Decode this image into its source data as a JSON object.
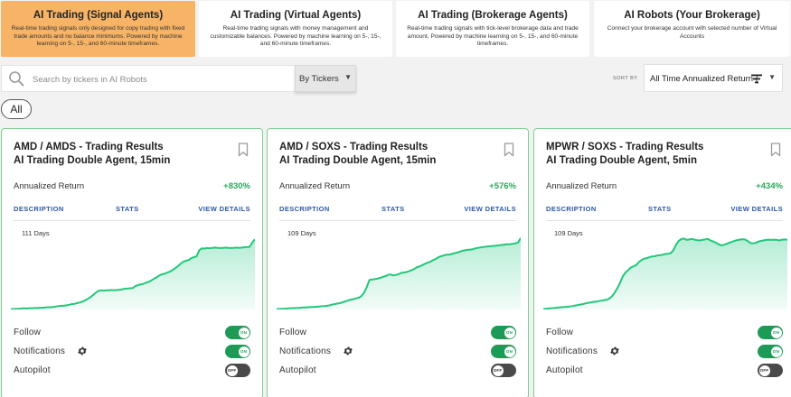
{
  "tabs": [
    {
      "title": "AI Trading (Signal Agents)",
      "desc": "Real-time trading signals only designed for copy trading with fixed trade amounts and no balance minimums. Powered by machine learning on 5-, 15-, and 60-minute timeframes.",
      "active": true
    },
    {
      "title": "AI Trading (Virtual Agents)",
      "desc": "Real-time trading signals with money management and customizable balances. Powered by machine learning on 5-, 15-, and 60-minute timeframes.",
      "active": false
    },
    {
      "title": "AI Trading (Brokerage Agents)",
      "desc": "Real-time trading signals with tick-level brokerage data and trade amount. Powered by machine learning on 5-, 15-, and 60-minute timeframes.",
      "active": false
    },
    {
      "title": "AI Robots (Your Brokerage)",
      "desc": "Connect your brokerage account with selected number of Virtual Accounts",
      "active": false
    }
  ],
  "search": {
    "placeholder": "Search by tickers in AI Robots",
    "value": ""
  },
  "ticker_filter": {
    "label": "By Tickers"
  },
  "sort": {
    "label": "SORT BY",
    "value": "All Time Annualized Return ("
  },
  "filter_chip": "All",
  "colors": {
    "accent": "#f8b466",
    "positive": "#27a85a",
    "toggle_on": "#1d9a55",
    "toggle_off": "#4a4a4a",
    "card_border": "#7dcf8c",
    "link": "#2d57a8"
  },
  "cards": [
    {
      "title_line1": "AMD / AMDS - Trading Results",
      "title_line2": "AI Trading Double Agent, 15min",
      "return_label": "Annualized Return",
      "return_value": "+830%",
      "link_description": "DESCRIPTION",
      "link_stats": "STATS",
      "link_view": "VIEW DETAILS",
      "days": "111 Days",
      "series": [
        2,
        2,
        3,
        3,
        4,
        5,
        4,
        5,
        5,
        6,
        6,
        7,
        7,
        8,
        9,
        9,
        10,
        12,
        14,
        15,
        15,
        17,
        19,
        22,
        23,
        26,
        28,
        32,
        37,
        43,
        50,
        58,
        68,
        75,
        78,
        77,
        78,
        78,
        79,
        78,
        79,
        80,
        82,
        84,
        85,
        86,
        87,
        95,
        99,
        102,
        104,
        109,
        112,
        118,
        125,
        131,
        138,
        143,
        145,
        150,
        154,
        160,
        168,
        176,
        185,
        194,
        198,
        200,
        208,
        212,
        215,
        240,
        248,
        247,
        249,
        248,
        250,
        251,
        250,
        249,
        250,
        251,
        250,
        249,
        250,
        251,
        250,
        251,
        252,
        253,
        254,
        272,
        285
      ],
      "follow_label": "Follow",
      "follow": "ON",
      "notifications_label": "Notifications",
      "notifications": "ON",
      "autopilot_label": "Autopilot",
      "autopilot": "OFF"
    },
    {
      "title_line1": "AMD / SOXS - Trading Results",
      "title_line2": "AI Trading Double Agent, 15min",
      "return_label": "Annualized Return",
      "return_value": "+576%",
      "link_description": "DESCRIPTION",
      "link_stats": "STATS",
      "link_view": "VIEW DETAILS",
      "days": "109 Days",
      "series": [
        2,
        2,
        3,
        3,
        4,
        5,
        5,
        6,
        6,
        7,
        8,
        8,
        9,
        10,
        10,
        11,
        12,
        13,
        14,
        15,
        17,
        20,
        22,
        24,
        26,
        30,
        33,
        37,
        40,
        42,
        45,
        48,
        55,
        68,
        92,
        120,
        122,
        123,
        125,
        128,
        132,
        135,
        140,
        142,
        138,
        140,
        143,
        148,
        150,
        152,
        156,
        160,
        165,
        172,
        175,
        180,
        186,
        190,
        194,
        200,
        205,
        212,
        216,
        219,
        222,
        222,
        225,
        228,
        231,
        234,
        238,
        240,
        242,
        243,
        244,
        248,
        250,
        252,
        253,
        255,
        256,
        257,
        258,
        259,
        260,
        262,
        263,
        264,
        265,
        266,
        268,
        272,
        290
      ],
      "follow_label": "Follow",
      "follow": "ON",
      "notifications_label": "Notifications",
      "notifications": "ON",
      "autopilot_label": "Autopilot",
      "autopilot": "OFF"
    },
    {
      "title_line1": "MPWR / SOXS - Trading Results",
      "title_line2": "AI Trading Double Agent, 5min",
      "return_label": "Annualized Return",
      "return_value": "+434%",
      "link_description": "DESCRIPTION",
      "link_stats": "STATS",
      "link_view": "VIEW DETAILS",
      "days": "109 Days",
      "series": [
        2,
        3,
        4,
        5,
        6,
        7,
        8,
        9,
        10,
        11,
        12,
        14,
        16,
        18,
        20,
        22,
        25,
        27,
        29,
        31,
        32,
        34,
        36,
        38,
        40,
        45,
        55,
        70,
        88,
        110,
        135,
        150,
        160,
        170,
        175,
        180,
        192,
        200,
        206,
        208,
        212,
        215,
        216,
        219,
        220,
        222,
        225,
        226,
        228,
        240,
        262,
        278,
        285,
        288,
        282,
        284,
        286,
        283,
        281,
        280,
        282,
        284,
        286,
        280,
        276,
        271,
        265,
        260,
        262,
        266,
        270,
        274,
        278,
        281,
        283,
        285,
        284,
        278,
        270,
        268,
        270,
        275,
        278,
        280,
        282,
        283,
        282,
        283,
        282,
        280,
        283,
        284,
        283
      ],
      "follow_label": "Follow",
      "follow": "ON",
      "notifications_label": "Notifications",
      "notifications": "ON",
      "autopilot_label": "Autopilot",
      "autopilot": "OFF"
    }
  ]
}
